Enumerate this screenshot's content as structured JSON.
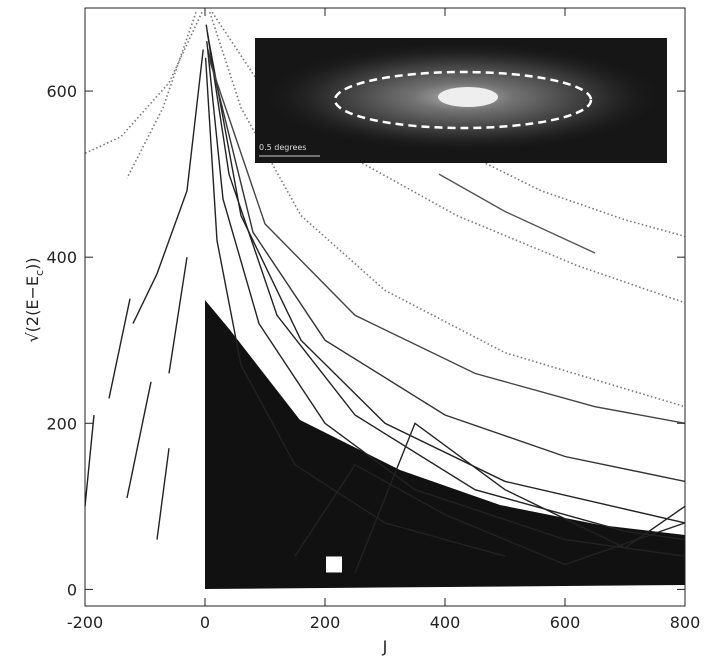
{
  "chart_data": {
    "type": "line",
    "xlabel": "J",
    "ylabel": [
      "√(2(E−E",
      "c",
      "))"
    ],
    "xlim": [
      -200,
      800
    ],
    "ylim": [
      -20,
      700
    ],
    "xticks": [
      -200,
      0,
      200,
      400,
      600,
      800
    ],
    "yticks": [
      0,
      200,
      400,
      600
    ],
    "inset_label": "0.5 degrees",
    "marker": {
      "x": 215,
      "y": 30,
      "color": "#ffffff"
    },
    "series": [
      {
        "color": "#777777",
        "style": "dotted",
        "x": [
          8,
          60,
          160,
          300,
          500,
          800
        ],
        "values": [
          695,
          580,
          450,
          360,
          285,
          220
        ]
      },
      {
        "color": "#777777",
        "style": "dotted",
        "x": [
          12,
          90,
          220,
          420,
          620,
          800
        ],
        "values": [
          695,
          610,
          530,
          450,
          390,
          345
        ]
      },
      {
        "color": "#777777",
        "style": "dotted",
        "x": [
          420,
          560,
          700,
          800
        ],
        "values": [
          530,
          480,
          445,
          425
        ]
      },
      {
        "color": "#555555",
        "style": "solid",
        "x": [
          390,
          500,
          650
        ],
        "values": [
          500,
          455,
          405
        ]
      },
      {
        "color": "#777777",
        "style": "dotted",
        "x": [
          -5,
          -60,
          -140,
          -200
        ],
        "values": [
          695,
          610,
          545,
          525
        ]
      },
      {
        "color": "#777777",
        "style": "dotted",
        "x": [
          -15,
          -70,
          -130
        ],
        "values": [
          695,
          580,
          495
        ]
      },
      {
        "color": "#222222",
        "style": "solid",
        "x": [
          2,
          40,
          120,
          250,
          450,
          700,
          800
        ],
        "values": [
          680,
          500,
          330,
          210,
          120,
          70,
          60
        ]
      },
      {
        "color": "#222222",
        "style": "solid",
        "x": [
          4,
          60,
          160,
          300,
          500,
          800
        ],
        "values": [
          670,
          450,
          300,
          200,
          130,
          80
        ]
      },
      {
        "color": "#222222",
        "style": "solid",
        "x": [
          3,
          30,
          90,
          200,
          350,
          600,
          800
        ],
        "values": [
          660,
          470,
          320,
          200,
          120,
          60,
          40
        ]
      },
      {
        "color": "#333333",
        "style": "solid",
        "x": [
          5,
          80,
          200,
          400,
          600,
          800
        ],
        "values": [
          650,
          430,
          300,
          210,
          160,
          130
        ]
      },
      {
        "color": "#222222",
        "style": "solid",
        "x": [
          1,
          20,
          60,
          150,
          300,
          500
        ],
        "values": [
          640,
          420,
          270,
          150,
          80,
          40
        ]
      },
      {
        "color": "#444444",
        "style": "solid",
        "x": [
          6,
          100,
          250,
          450,
          650,
          800
        ],
        "values": [
          640,
          440,
          330,
          260,
          220,
          200
        ]
      },
      {
        "color": "#222222",
        "style": "solid",
        "x": [
          -3,
          -30,
          -80,
          -120
        ],
        "values": [
          650,
          480,
          380,
          320
        ]
      },
      {
        "color": "#222222",
        "style": "solid",
        "x": [
          -200,
          -185
        ],
        "values": [
          100,
          210
        ]
      },
      {
        "color": "#222222",
        "style": "solid",
        "x": [
          -160,
          -125
        ],
        "values": [
          230,
          350
        ]
      },
      {
        "color": "#222222",
        "style": "solid",
        "x": [
          -130,
          -90
        ],
        "values": [
          110,
          250
        ]
      },
      {
        "color": "#222222",
        "style": "solid",
        "x": [
          -80,
          -60
        ],
        "values": [
          60,
          170
        ]
      },
      {
        "color": "#222222",
        "style": "solid",
        "x": [
          -60,
          -30
        ],
        "values": [
          260,
          400
        ]
      },
      {
        "color": "#222222",
        "style": "solid",
        "x": [
          150,
          250,
          400,
          600,
          800
        ],
        "values": [
          40,
          150,
          90,
          30,
          80
        ]
      },
      {
        "color": "#222222",
        "style": "solid",
        "x": [
          250,
          350,
          500,
          700,
          800
        ],
        "values": [
          20,
          200,
          120,
          50,
          100
        ]
      }
    ]
  }
}
